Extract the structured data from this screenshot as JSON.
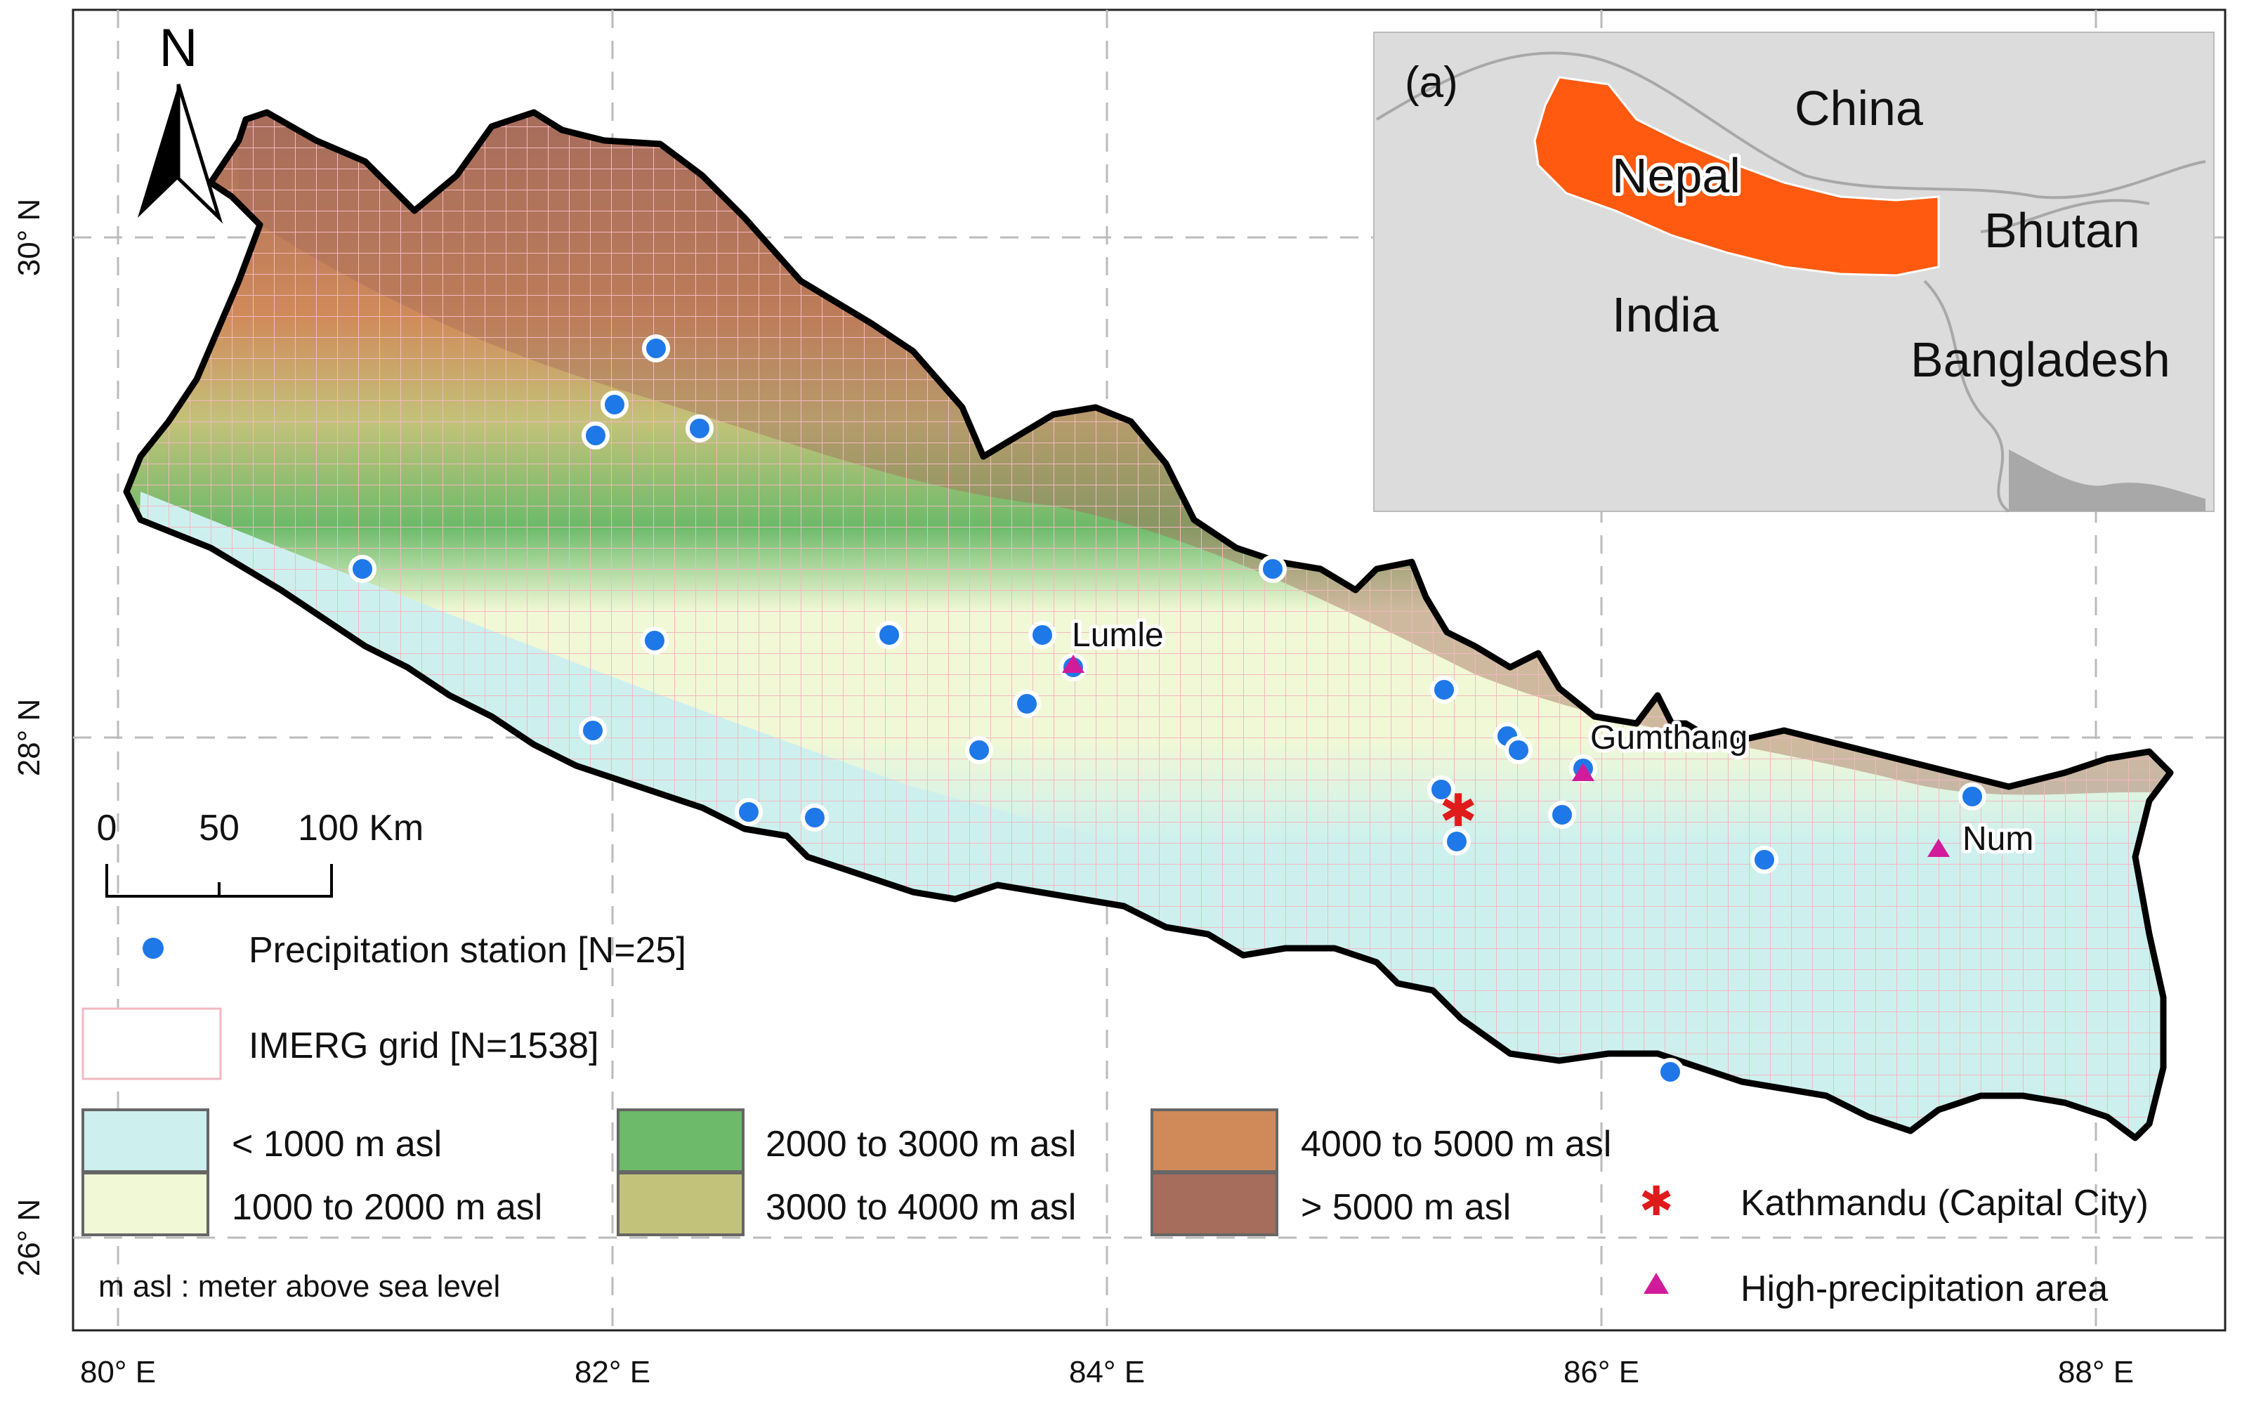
{
  "map": {
    "north_arrow": "N",
    "inset": {
      "panel_label": "(a)",
      "countries": [
        "China",
        "Nepal",
        "Bhutan",
        "India",
        "Bangladesh"
      ],
      "highlight_color": "#ff5a10",
      "background_color": "#dcdcdc"
    },
    "axes": {
      "x_ticks": [
        "80° E",
        "82° E",
        "84° E",
        "86° E",
        "88° E"
      ],
      "y_ticks": [
        "30° N",
        "28° N",
        "26° N"
      ]
    },
    "scale_bar": {
      "labels": [
        "0",
        "50",
        "100 Km"
      ]
    },
    "places": {
      "lumle": "Lumle",
      "gumthang": "Gumthang",
      "num": "Num"
    },
    "legend": {
      "station": "Precipitation station [N=25]",
      "grid": "IMERG grid [N=1538]",
      "elevation": [
        {
          "label": "< 1000 m asl",
          "color": "#cdf0ee"
        },
        {
          "label": "1000 to 2000 m asl",
          "color": "#f1f8d6"
        },
        {
          "label": "2000 to 3000 m asl",
          "color": "#6dba6a"
        },
        {
          "label": "3000 to 4000 m asl",
          "color": "#c3c27a"
        },
        {
          "label": "4000 to 5000 m asl",
          "color": "#d08a5a"
        },
        {
          "label": "> 5000 m asl",
          "color": "#a66c5c"
        }
      ],
      "capital": "Kathmandu (Capital City)",
      "high_precip": "High-precipitation area",
      "note": "m asl : meter above sea level"
    },
    "colors": {
      "station": "#1f78e8",
      "capital": "#e01b1b",
      "high_precip": "#d01c9b",
      "grid_line": "#f2b8c0"
    }
  }
}
